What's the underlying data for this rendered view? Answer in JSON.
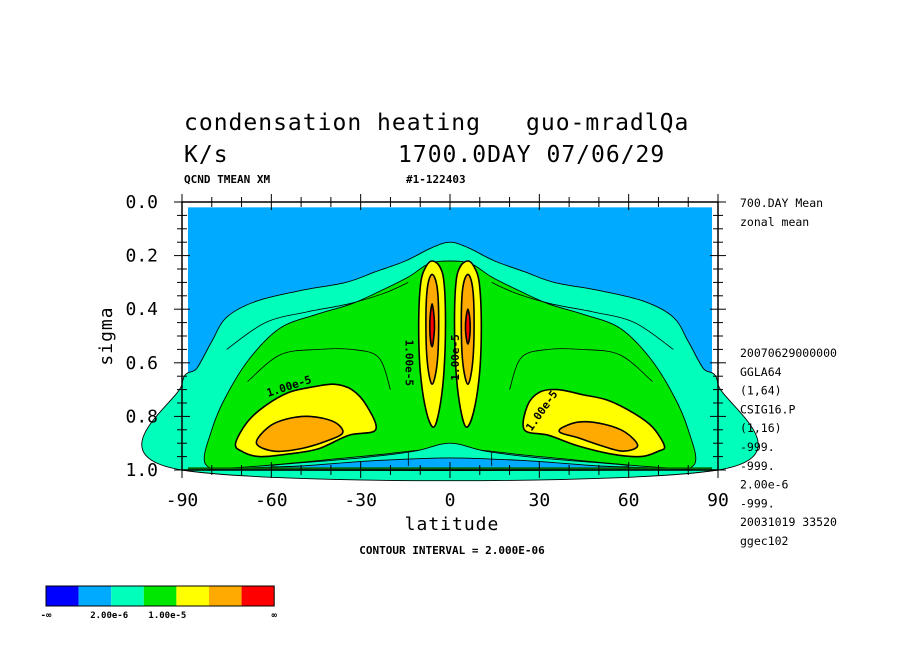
{
  "header": {
    "title_line1": "condensation heating",
    "title_exp": "guo-mradlQa",
    "unit": "K/s",
    "date": "1700.0DAY 07/06/29",
    "var_info": "QCND TMEAN XM",
    "run_id": "#1-122403"
  },
  "side_info": {
    "top": [
      "700.DAY Mean",
      "zonal mean"
    ],
    "bottom": [
      "20070629000000",
      "GGLA64",
      "(1,64)",
      "CSIG16.P",
      "(1,16)",
      "-999.",
      "-999.",
      "2.00e-6",
      "-999.",
      "20031019  33520",
      "ggec102"
    ]
  },
  "footer": {
    "contour_interval": "CONTOUR INTERVAL = 2.000E-06"
  },
  "chart_data": {
    "type": "contour",
    "xlabel": "latitude",
    "ylabel": "sigma",
    "xlim": [
      -90,
      90
    ],
    "ylim": [
      0.0,
      1.0
    ],
    "y_inverted": true,
    "x_ticks": [
      {
        "value": -90,
        "label": "-90"
      },
      {
        "value": -60,
        "label": "-60"
      },
      {
        "value": -30,
        "label": "-30"
      },
      {
        "value": 0,
        "label": "0"
      },
      {
        "value": 30,
        "label": "30"
      },
      {
        "value": 60,
        "label": "60"
      },
      {
        "value": 90,
        "label": "90"
      }
    ],
    "y_ticks": [
      {
        "value": 0.0,
        "label": "0.0"
      },
      {
        "value": 0.2,
        "label": "0.2"
      },
      {
        "value": 0.4,
        "label": "0.4"
      },
      {
        "value": 0.6,
        "label": "0.6"
      },
      {
        "value": 0.8,
        "label": "0.8"
      },
      {
        "value": 1.0,
        "label": "1.0"
      }
    ],
    "contour_interval": 2e-06,
    "contour_labels": [
      {
        "text": "1.00e-5",
        "lat": -54,
        "sigma": 0.69,
        "angle": -18
      },
      {
        "text": "1.00e-5",
        "lat": -14,
        "sigma": 0.6,
        "angle": 90
      },
      {
        "text": "1.00e-5",
        "lat": 2,
        "sigma": 0.58,
        "angle": -90
      },
      {
        "text": "1.00e-5",
        "lat": 31,
        "sigma": 0.78,
        "angle": -55
      }
    ],
    "legend": {
      "placement": "bottom-left",
      "colors": [
        "#0000ff",
        "#00aaff",
        "#00ffbb",
        "#00e800",
        "#ffff00",
        "#ffaa00",
        "#ff0000"
      ],
      "labels": [
        "-∞",
        "2.00e-6",
        "1.00e-5",
        "∞"
      ]
    },
    "colors": {
      "band1": "#00aaff",
      "band2": "#00ffbb",
      "band3": "#00e800",
      "band4": "#ffff00",
      "band5": "#ffaa00",
      "band6": "#ff0000"
    },
    "regions": [
      {
        "level": 2,
        "type": "arch",
        "points": [
          [
            -90,
            0.68
          ],
          [
            -85,
            0.62
          ],
          [
            -80,
            0.52
          ],
          [
            -75,
            0.43
          ],
          [
            -65,
            0.37
          ],
          [
            -50,
            0.33
          ],
          [
            -35,
            0.3
          ],
          [
            -25,
            0.26
          ],
          [
            -15,
            0.22
          ],
          [
            -6,
            0.17
          ],
          [
            0,
            0.15
          ],
          [
            6,
            0.17
          ],
          [
            15,
            0.22
          ],
          [
            25,
            0.26
          ],
          [
            35,
            0.3
          ],
          [
            50,
            0.33
          ],
          [
            65,
            0.37
          ],
          [
            75,
            0.43
          ],
          [
            80,
            0.52
          ],
          [
            85,
            0.62
          ],
          [
            90,
            0.68
          ],
          [
            90,
            1.0
          ],
          [
            -90,
            1.0
          ]
        ]
      },
      {
        "level": 3,
        "type": "arch",
        "points": [
          [
            -82,
            0.98
          ],
          [
            -80,
            0.85
          ],
          [
            -75,
            0.72
          ],
          [
            -67,
            0.58
          ],
          [
            -57,
            0.47
          ],
          [
            -45,
            0.42
          ],
          [
            -33,
            0.38
          ],
          [
            -23,
            0.33
          ],
          [
            -14,
            0.28
          ],
          [
            -7,
            0.23
          ],
          [
            0,
            0.22
          ],
          [
            7,
            0.23
          ],
          [
            14,
            0.28
          ],
          [
            23,
            0.33
          ],
          [
            33,
            0.38
          ],
          [
            45,
            0.42
          ],
          [
            57,
            0.47
          ],
          [
            67,
            0.58
          ],
          [
            75,
            0.72
          ],
          [
            80,
            0.85
          ],
          [
            82,
            0.98
          ],
          [
            70,
            0.99
          ],
          [
            30,
            0.95
          ],
          [
            0,
            0.92
          ],
          [
            -30,
            0.95
          ],
          [
            -70,
            0.99
          ]
        ]
      },
      {
        "level": 4,
        "type": "blob",
        "points": [
          [
            -72,
            0.9
          ],
          [
            -68,
            0.82
          ],
          [
            -62,
            0.76
          ],
          [
            -54,
            0.71
          ],
          [
            -46,
            0.69
          ],
          [
            -39,
            0.68
          ],
          [
            -33,
            0.7
          ],
          [
            -28,
            0.76
          ],
          [
            -25,
            0.85
          ],
          [
            -34,
            0.87
          ],
          [
            -44,
            0.92
          ],
          [
            -54,
            0.94
          ],
          [
            -64,
            0.95
          ],
          [
            -70,
            0.93
          ]
        ]
      },
      {
        "level": 5,
        "type": "blob",
        "points": [
          [
            -65,
            0.9
          ],
          [
            -61,
            0.84
          ],
          [
            -55,
            0.81
          ],
          [
            -47,
            0.8
          ],
          [
            -39,
            0.82
          ],
          [
            -36,
            0.86
          ],
          [
            -41,
            0.89
          ],
          [
            -50,
            0.92
          ],
          [
            -59,
            0.93
          ]
        ]
      },
      {
        "level": 4,
        "type": "blob",
        "points": [
          [
            72,
            0.91
          ],
          [
            68,
            0.84
          ],
          [
            62,
            0.79
          ],
          [
            53,
            0.74
          ],
          [
            45,
            0.72
          ],
          [
            36,
            0.7
          ],
          [
            30,
            0.71
          ],
          [
            26,
            0.76
          ],
          [
            25,
            0.85
          ],
          [
            33,
            0.87
          ],
          [
            43,
            0.91
          ],
          [
            54,
            0.94
          ],
          [
            64,
            0.95
          ],
          [
            70,
            0.93
          ]
        ]
      },
      {
        "level": 5,
        "type": "blob",
        "points": [
          [
            63,
            0.91
          ],
          [
            59,
            0.86
          ],
          [
            52,
            0.83
          ],
          [
            44,
            0.82
          ],
          [
            38,
            0.84
          ],
          [
            37,
            0.86
          ],
          [
            43,
            0.88
          ],
          [
            51,
            0.91
          ],
          [
            58,
            0.93
          ]
        ]
      },
      {
        "level": 4,
        "type": "blob",
        "points": [
          [
            -6,
            0.22
          ],
          [
            -3.5,
            0.24
          ],
          [
            -2,
            0.3
          ],
          [
            -1.5,
            0.45
          ],
          [
            -2,
            0.63
          ],
          [
            -3.5,
            0.77
          ],
          [
            -5.5,
            0.84
          ],
          [
            -8,
            0.78
          ],
          [
            -10,
            0.63
          ],
          [
            -10.5,
            0.45
          ],
          [
            -9.8,
            0.3
          ],
          [
            -8,
            0.24
          ]
        ]
      },
      {
        "level": 5,
        "type": "blob",
        "points": [
          [
            -6,
            0.27
          ],
          [
            -4.3,
            0.32
          ],
          [
            -3.8,
            0.45
          ],
          [
            -4.3,
            0.6
          ],
          [
            -6,
            0.68
          ],
          [
            -7.6,
            0.6
          ],
          [
            -8.1,
            0.45
          ],
          [
            -7.6,
            0.32
          ]
        ]
      },
      {
        "level": 6,
        "type": "blob",
        "points": [
          [
            -6,
            0.38
          ],
          [
            -5.4,
            0.42
          ],
          [
            -5.2,
            0.47
          ],
          [
            -5.6,
            0.52
          ],
          [
            -6,
            0.54
          ],
          [
            -6.5,
            0.52
          ],
          [
            -6.8,
            0.47
          ],
          [
            -6.6,
            0.42
          ]
        ]
      },
      {
        "level": 4,
        "type": "blob",
        "points": [
          [
            6,
            0.22
          ],
          [
            8,
            0.24
          ],
          [
            9.8,
            0.3
          ],
          [
            10.5,
            0.45
          ],
          [
            10,
            0.63
          ],
          [
            8,
            0.78
          ],
          [
            5.5,
            0.84
          ],
          [
            3.5,
            0.77
          ],
          [
            2,
            0.63
          ],
          [
            1.5,
            0.45
          ],
          [
            2,
            0.3
          ],
          [
            3.5,
            0.24
          ]
        ]
      },
      {
        "level": 5,
        "type": "blob",
        "points": [
          [
            6,
            0.27
          ],
          [
            7.6,
            0.32
          ],
          [
            8.1,
            0.45
          ],
          [
            7.6,
            0.6
          ],
          [
            6,
            0.68
          ],
          [
            4.3,
            0.6
          ],
          [
            3.8,
            0.45
          ],
          [
            4.3,
            0.32
          ]
        ]
      },
      {
        "level": 6,
        "type": "blob",
        "points": [
          [
            6,
            0.4
          ],
          [
            6.6,
            0.43
          ],
          [
            6.8,
            0.47
          ],
          [
            6.5,
            0.51
          ],
          [
            6,
            0.53
          ],
          [
            5.5,
            0.51
          ],
          [
            5.2,
            0.47
          ],
          [
            5.4,
            0.43
          ]
        ]
      },
      {
        "level": 2,
        "type": "blob",
        "points": [
          [
            -60,
            0.985
          ],
          [
            -30,
            0.955
          ],
          [
            -12,
            0.93
          ],
          [
            0,
            0.9
          ],
          [
            12,
            0.93
          ],
          [
            30,
            0.955
          ],
          [
            60,
            0.985
          ],
          [
            30,
            0.99
          ],
          [
            0,
            0.97
          ],
          [
            -30,
            0.99
          ]
        ]
      },
      {
        "level": 1,
        "type": "blob",
        "points": [
          [
            -75,
            1.0
          ],
          [
            -50,
            0.985
          ],
          [
            -25,
            0.965
          ],
          [
            0,
            0.955
          ],
          [
            25,
            0.965
          ],
          [
            50,
            0.985
          ],
          [
            75,
            1.0
          ]
        ]
      }
    ],
    "extra_lines": [
      [
        [
          -75,
          0.55
        ],
        [
          -62,
          0.45
        ],
        [
          -48,
          0.41
        ],
        [
          -34,
          0.38
        ],
        [
          -22,
          0.34
        ],
        [
          -14,
          0.3
        ]
      ],
      [
        [
          75,
          0.55
        ],
        [
          62,
          0.45
        ],
        [
          48,
          0.41
        ],
        [
          34,
          0.38
        ],
        [
          22,
          0.34
        ],
        [
          14,
          0.3
        ]
      ],
      [
        [
          -68,
          0.67
        ],
        [
          -57,
          0.57
        ],
        [
          -44,
          0.55
        ],
        [
          -33,
          0.55
        ],
        [
          -24,
          0.58
        ],
        [
          -20,
          0.7
        ]
      ],
      [
        [
          68,
          0.67
        ],
        [
          57,
          0.57
        ],
        [
          44,
          0.55
        ],
        [
          33,
          0.55
        ],
        [
          24,
          0.58
        ],
        [
          20,
          0.7
        ]
      ]
    ]
  }
}
